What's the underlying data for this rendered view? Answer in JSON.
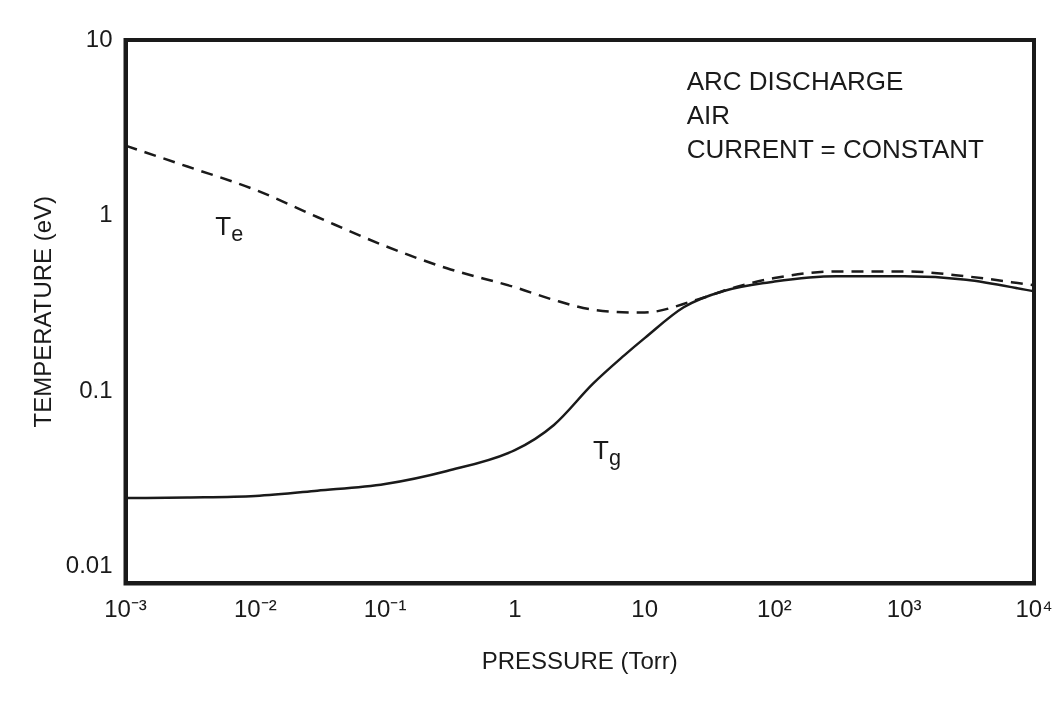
{
  "chart_data": {
    "type": "line",
    "xlabel": "PRESSURE (Torr)",
    "ylabel": "TEMPERATURE (eV)",
    "log": "xy",
    "grid": false,
    "legend": false,
    "marker": "none",
    "xlim": [
      0.001,
      10000
    ],
    "ylim": [
      0.008,
      10
    ],
    "xticks": [
      {
        "value": 0.001,
        "label": "10⁻³"
      },
      {
        "value": 0.01,
        "label": "10⁻²"
      },
      {
        "value": 0.1,
        "label": "10⁻¹"
      },
      1,
      10,
      {
        "value": 100,
        "label": "10²"
      },
      {
        "value": 1000,
        "label": "10³"
      },
      {
        "value": 10000,
        "label": "10⁴"
      }
    ],
    "yticks": [
      0.01,
      0.1,
      1,
      10
    ],
    "series": [
      {
        "name": "T$_{e}$",
        "color": "#1a1a1a",
        "line_style": "dashed",
        "x": [
          0.001,
          0.003,
          0.01,
          0.03,
          0.1,
          0.3,
          1,
          2,
          4,
          10,
          25,
          50,
          100,
          300,
          1000,
          3000,
          10000
        ],
        "values": [
          2.5,
          1.9,
          1.4,
          0.98,
          0.67,
          0.5,
          0.39,
          0.33,
          0.29,
          0.28,
          0.33,
          0.39,
          0.44,
          0.48,
          0.48,
          0.45,
          0.4
        ]
      },
      {
        "name": "T$_{g}$",
        "color": "#1a1a1a",
        "line_style": "solid",
        "x": [
          0.001,
          0.003,
          0.01,
          0.03,
          0.1,
          0.3,
          1,
          2,
          4,
          7,
          10,
          20,
          40,
          100,
          300,
          1000,
          3000,
          10000
        ],
        "values": [
          0.0245,
          0.0247,
          0.0252,
          0.027,
          0.0295,
          0.035,
          0.046,
          0.064,
          0.11,
          0.16,
          0.2,
          0.3,
          0.37,
          0.42,
          0.45,
          0.45,
          0.43,
          0.37
        ]
      }
    ],
    "annotations": [
      "ARC DISCHARGE\nAIR\nCURRENT = CONSTANT"
    ]
  }
}
